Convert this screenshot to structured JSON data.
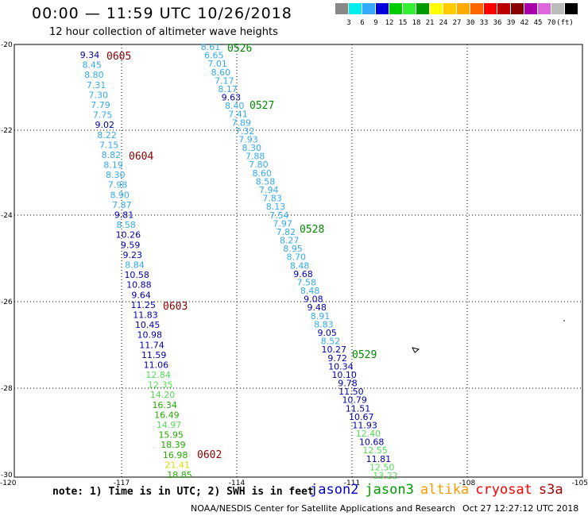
{
  "title": "00:00 — 11:59 UTC 10/26/2018",
  "subtitle": "12 hour collection of altimeter wave heights",
  "color_scale": {
    "colors": [
      "#888888",
      "#00eeee",
      "#33aaff",
      "#0000dd",
      "#00cc00",
      "#33ee33",
      "#009900",
      "#ffff00",
      "#ffcc00",
      "#ffaa00",
      "#ff6600",
      "#ff0000",
      "#bb0000",
      "#880000",
      "#aa00aa",
      "#dd66dd",
      "#bbbbbb",
      "#000000"
    ],
    "labels": [
      "3",
      "6",
      "9",
      "12",
      "15",
      "18",
      "21",
      "24",
      "27",
      "30",
      "33",
      "36",
      "39",
      "42",
      "45",
      "70",
      "(ft)"
    ]
  },
  "axes": {
    "lat_labels": [
      "-20",
      "-22",
      "-24",
      "-26",
      "-28",
      "-30"
    ],
    "lon_labels": [
      "-120",
      "-117",
      "-114",
      "-111",
      "-108",
      "-105"
    ]
  },
  "tracks": [
    {
      "id": "west",
      "time_labels": [
        {
          "text": "0605",
          "color": "#880000"
        },
        {
          "text": "0604",
          "color": "#880000"
        },
        {
          "text": "0603",
          "color": "#880000"
        },
        {
          "text": "0602",
          "color": "#880000"
        }
      ],
      "values": [
        {
          "v": "9.34",
          "c": "#0000aa"
        },
        {
          "v": "8.45",
          "c": "#33aaee"
        },
        {
          "v": "8.80",
          "c": "#33aaee"
        },
        {
          "v": "7.31",
          "c": "#33aaee"
        },
        {
          "v": "7.30",
          "c": "#33aaee"
        },
        {
          "v": "7.79",
          "c": "#33aaee"
        },
        {
          "v": "7.75",
          "c": "#33aaee"
        },
        {
          "v": "9.02",
          "c": "#0000aa"
        },
        {
          "v": "8.22",
          "c": "#33aaee"
        },
        {
          "v": "7.15",
          "c": "#33aaee"
        },
        {
          "v": "8.82",
          "c": "#33aaee"
        },
        {
          "v": "8.19",
          "c": "#33aaee"
        },
        {
          "v": "8.30",
          "c": "#33aaee"
        },
        {
          "v": "7.98",
          "c": "#33aaee"
        },
        {
          "v": "8.90",
          "c": "#33aaee"
        },
        {
          "v": "7.87",
          "c": "#33aaee"
        },
        {
          "v": "9.81",
          "c": "#0000aa"
        },
        {
          "v": "8.58",
          "c": "#33aaee"
        },
        {
          "v": "10.26",
          "c": "#0000aa"
        },
        {
          "v": "9.59",
          "c": "#0000aa"
        },
        {
          "v": "9.23",
          "c": "#0000aa"
        },
        {
          "v": "8.84",
          "c": "#33aaee"
        },
        {
          "v": "10.58",
          "c": "#0000aa"
        },
        {
          "v": "10.88",
          "c": "#0000aa"
        },
        {
          "v": "9.64",
          "c": "#0000aa"
        },
        {
          "v": "11.25",
          "c": "#0000aa"
        },
        {
          "v": "11.83",
          "c": "#0000aa"
        },
        {
          "v": "10.45",
          "c": "#0000aa"
        },
        {
          "v": "10.98",
          "c": "#0000aa"
        },
        {
          "v": "11.74",
          "c": "#0000aa"
        },
        {
          "v": "11.59",
          "c": "#0000aa"
        },
        {
          "v": "11.06",
          "c": "#0000aa"
        },
        {
          "v": "12.84",
          "c": "#55dd55"
        },
        {
          "v": "12.35",
          "c": "#55dd55"
        },
        {
          "v": "14.20",
          "c": "#55dd55"
        },
        {
          "v": "16.34",
          "c": "#22aa00"
        },
        {
          "v": "16.49",
          "c": "#22aa00"
        },
        {
          "v": "14.97",
          "c": "#55dd55"
        },
        {
          "v": "15.95",
          "c": "#22aa00"
        },
        {
          "v": "18.39",
          "c": "#22aa00"
        },
        {
          "v": "16.98",
          "c": "#22aa00"
        },
        {
          "v": "21.41",
          "c": "#dddd00"
        },
        {
          "v": "18.85",
          "c": "#22aa00"
        }
      ]
    },
    {
      "id": "east",
      "time_labels": [
        {
          "text": "0526",
          "color": "#008800"
        },
        {
          "text": "0527",
          "color": "#008800"
        },
        {
          "text": "0528",
          "color": "#008800"
        },
        {
          "text": "0529",
          "color": "#008800"
        }
      ],
      "values": [
        {
          "v": "8.61",
          "c": "#33aaee"
        },
        {
          "v": "6.65",
          "c": "#33aaee"
        },
        {
          "v": "7.01",
          "c": "#33aaee"
        },
        {
          "v": "8.60",
          "c": "#33aaee"
        },
        {
          "v": "7.17",
          "c": "#33aaee"
        },
        {
          "v": "8.17",
          "c": "#33aaee"
        },
        {
          "v": "9.63",
          "c": "#0000aa"
        },
        {
          "v": "8.40",
          "c": "#33aaee"
        },
        {
          "v": "7.41",
          "c": "#33aaee"
        },
        {
          "v": "7.89",
          "c": "#33aaee"
        },
        {
          "v": "7.32",
          "c": "#33aaee"
        },
        {
          "v": "7.93",
          "c": "#33aaee"
        },
        {
          "v": "8.30",
          "c": "#33aaee"
        },
        {
          "v": "7.88",
          "c": "#33aaee"
        },
        {
          "v": "7.80",
          "c": "#33aaee"
        },
        {
          "v": "8.60",
          "c": "#33aaee"
        },
        {
          "v": "8.58",
          "c": "#33aaee"
        },
        {
          "v": "7.94",
          "c": "#33aaee"
        },
        {
          "v": "7.83",
          "c": "#33aaee"
        },
        {
          "v": "8.13",
          "c": "#33aaee"
        },
        {
          "v": "7.54",
          "c": "#33aaee"
        },
        {
          "v": "7.97",
          "c": "#33aaee"
        },
        {
          "v": "7.82",
          "c": "#33aaee"
        },
        {
          "v": "8.27",
          "c": "#33aaee"
        },
        {
          "v": "8.95",
          "c": "#33aaee"
        },
        {
          "v": "8.70",
          "c": "#33aaee"
        },
        {
          "v": "8.48",
          "c": "#33aaee"
        },
        {
          "v": "9.68",
          "c": "#0000aa"
        },
        {
          "v": "7.58",
          "c": "#33aaee"
        },
        {
          "v": "8.48",
          "c": "#33aaee"
        },
        {
          "v": "9.08",
          "c": "#0000aa"
        },
        {
          "v": "9.48",
          "c": "#0000aa"
        },
        {
          "v": "8.91",
          "c": "#33aaee"
        },
        {
          "v": "8.83",
          "c": "#33aaee"
        },
        {
          "v": "9.05",
          "c": "#0000aa"
        },
        {
          "v": "8.52",
          "c": "#33aaee"
        },
        {
          "v": "10.27",
          "c": "#0000aa"
        },
        {
          "v": "9.72",
          "c": "#0000aa"
        },
        {
          "v": "10.34",
          "c": "#0000aa"
        },
        {
          "v": "10.10",
          "c": "#0000aa"
        },
        {
          "v": "9.78",
          "c": "#0000aa"
        },
        {
          "v": "11.50",
          "c": "#0000aa"
        },
        {
          "v": "10.79",
          "c": "#0000aa"
        },
        {
          "v": "11.51",
          "c": "#0000aa"
        },
        {
          "v": "10.67",
          "c": "#0000aa"
        },
        {
          "v": "11.93",
          "c": "#0000aa"
        },
        {
          "v": "12.40",
          "c": "#55dd55"
        },
        {
          "v": "10.68",
          "c": "#0000aa"
        },
        {
          "v": "12.55",
          "c": "#55dd55"
        },
        {
          "v": "11.81",
          "c": "#0000aa"
        },
        {
          "v": "12.50",
          "c": "#55dd55"
        },
        {
          "v": "13.22",
          "c": "#55dd55"
        }
      ]
    }
  ],
  "note": "note: 1) Time is in UTC; 2) SWH is in feet",
  "satellites": [
    {
      "name": "jason2",
      "color": "#0000cc"
    },
    {
      "name": "jason3",
      "color": "#009900"
    },
    {
      "name": "altika",
      "color": "#ff9900"
    },
    {
      "name": "cryosat",
      "color": "#ff0000"
    },
    {
      "name": "s3a",
      "color": "#aa0000"
    }
  ],
  "credit": "NOAA/NESDIS Center for Satellite Applications and Research",
  "timestamp": "Oct 27 12:27:12 UTC 2018"
}
